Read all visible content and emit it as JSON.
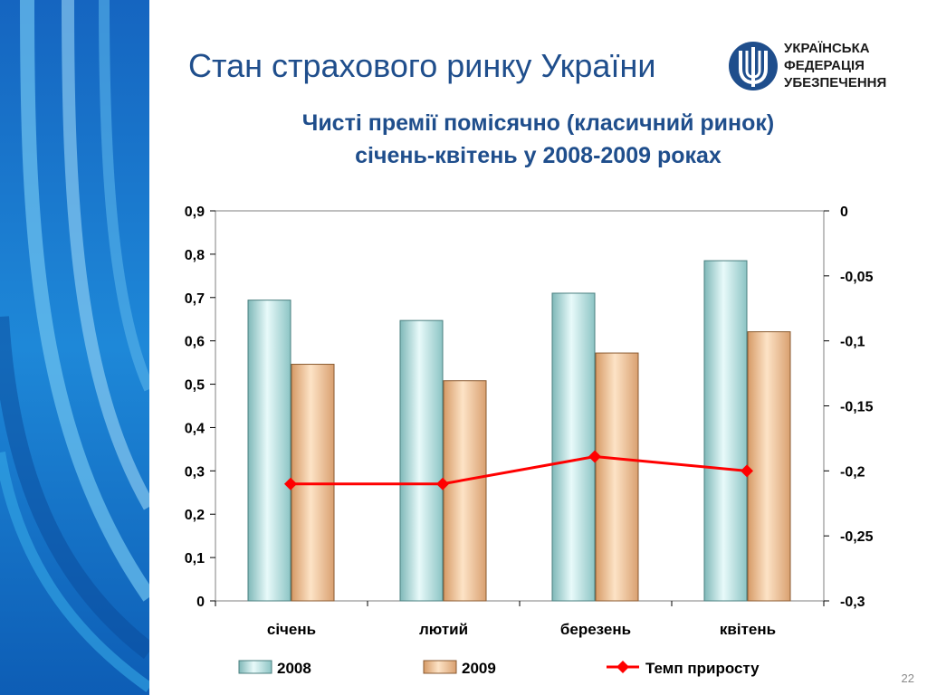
{
  "slide": {
    "title": "Стан страхового ринку України",
    "page_number": "22"
  },
  "logo": {
    "lines": [
      "УКРАЇНСЬКА",
      "ФЕДЕРАЦІЯ",
      "УБЕЗПЕЧЕННЯ"
    ]
  },
  "colors": {
    "title": "#1f4e8c",
    "bar_2008": "#bfe6e6",
    "bar_2009": "#f0c8a0",
    "line": "#ff0000",
    "side_band": "#1e78c8"
  },
  "chart_data": {
    "type": "bar",
    "title_lines": [
      "Чисті премії помісячно (класичний ринок)",
      "січень-квітень у 2008-2009 роках"
    ],
    "categories": [
      "січень",
      "лютий",
      "березень",
      "квітень"
    ],
    "series": [
      {
        "name": "2008",
        "type": "bar",
        "axis": "left",
        "values": [
          0.694,
          0.647,
          0.71,
          0.785
        ]
      },
      {
        "name": "2009",
        "type": "bar",
        "axis": "left",
        "values": [
          0.546,
          0.508,
          0.572,
          0.621
        ]
      },
      {
        "name": "Темп приросту",
        "type": "line",
        "axis": "right",
        "values": [
          -0.21,
          -0.21,
          -0.189,
          -0.2
        ]
      }
    ],
    "y_left": {
      "min": 0,
      "max": 0.9,
      "ticks": [
        "0",
        "0,1",
        "0,2",
        "0,3",
        "0,4",
        "0,5",
        "0,6",
        "0,7",
        "0,8",
        "0,9"
      ]
    },
    "y_right": {
      "min": -0.3,
      "max": 0,
      "ticks": [
        "-0,3",
        "-0,25",
        "-0,2",
        "-0,15",
        "-0,1",
        "-0,05",
        "0"
      ]
    },
    "grid": false,
    "legend_position": "bottom"
  }
}
